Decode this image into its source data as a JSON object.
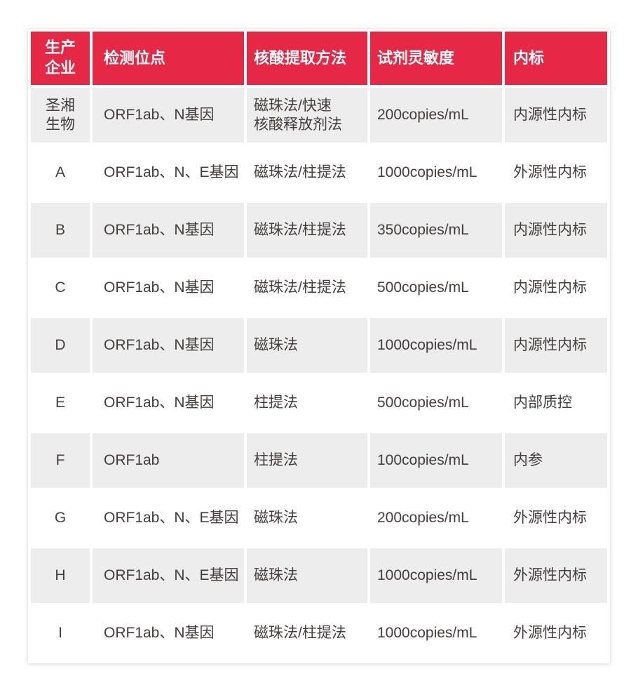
{
  "theme": {
    "header_bg": "#e62844",
    "header_text_color": "#ffffff",
    "row_alt_bg": "#ededed",
    "body_text_color": "#443d3b",
    "page_bg": "#ffffff"
  },
  "table": {
    "headers": [
      "生产\n企业",
      "检测位点",
      "核酸提取方法",
      "试剂灵敏度",
      "内标"
    ],
    "rows": [
      {
        "manufacturer": "圣湘\n生物",
        "detection_sites": "ORF1ab、N基因",
        "extraction_method": "磁珠法/快速\n核酸释放剂法",
        "sensitivity": "200copies/mL",
        "internal_standard": "内源性内标",
        "shaded": true
      },
      {
        "manufacturer": "A",
        "detection_sites": "ORF1ab、N、E基因",
        "extraction_method": "磁珠法/柱提法",
        "sensitivity": "1000copies/mL",
        "internal_standard": "外源性内标",
        "shaded": false
      },
      {
        "manufacturer": "B",
        "detection_sites": "ORF1ab、N基因",
        "extraction_method": "磁珠法/柱提法",
        "sensitivity": "350copies/mL",
        "internal_standard": "内源性内标",
        "shaded": true
      },
      {
        "manufacturer": "C",
        "detection_sites": "ORF1ab、N基因",
        "extraction_method": "磁珠法/柱提法",
        "sensitivity": "500copies/mL",
        "internal_standard": "内源性内标",
        "shaded": false
      },
      {
        "manufacturer": "D",
        "detection_sites": "ORF1ab、N基因",
        "extraction_method": "磁珠法",
        "sensitivity": "1000copies/mL",
        "internal_standard": "内源性内标",
        "shaded": true
      },
      {
        "manufacturer": "E",
        "detection_sites": "ORF1ab、N基因",
        "extraction_method": "柱提法",
        "sensitivity": "500copies/mL",
        "internal_standard": "内部质控",
        "shaded": false
      },
      {
        "manufacturer": "F",
        "detection_sites": "ORF1ab",
        "extraction_method": "柱提法",
        "sensitivity": "100copies/mL",
        "internal_standard": "内参",
        "shaded": true
      },
      {
        "manufacturer": "G",
        "detection_sites": "ORF1ab、N、E基因",
        "extraction_method": "磁珠法",
        "sensitivity": "200copies/mL",
        "internal_standard": "外源性内标",
        "shaded": false
      },
      {
        "manufacturer": "H",
        "detection_sites": "ORF1ab、N、E基因",
        "extraction_method": "磁珠法",
        "sensitivity": "1000copies/mL",
        "internal_standard": "外源性内标",
        "shaded": true
      },
      {
        "manufacturer": "I",
        "detection_sites": "ORF1ab、N基因",
        "extraction_method": "磁珠法/柱提法",
        "sensitivity": "1000copies/mL",
        "internal_standard": "外源性内标",
        "shaded": false
      }
    ]
  }
}
